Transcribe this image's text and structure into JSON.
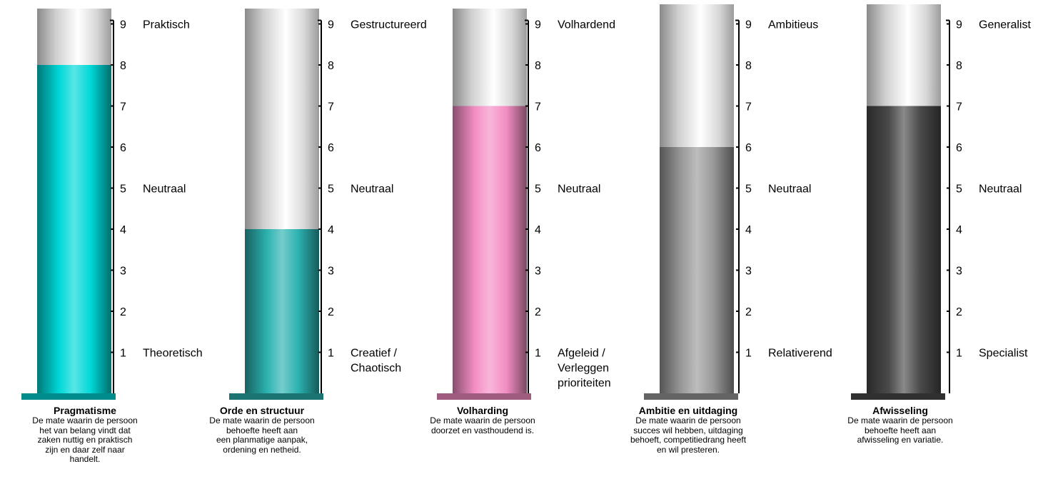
{
  "chart_data": [
    {
      "type": "bar",
      "title": "Pragmatisme",
      "description": "De mate waarin de persoon\nhet van belang vindt dat\nzaken nuttig en praktisch\nzijn en daar zelf naar\nhandelt.",
      "value": 8,
      "ylim": [
        0,
        9.3
      ],
      "yticks": [
        1,
        2,
        3,
        4,
        5,
        6,
        7,
        8,
        9
      ],
      "labels": {
        "high": "Praktisch",
        "mid": "Neutraal",
        "low": [
          "Theoretisch"
        ]
      },
      "color": "#00d8d8"
    },
    {
      "type": "bar",
      "title": "Orde en structuur",
      "description": "De mate waarin de persoon\nbehoefte heeft aan\neen planmatige aanpak,\nordening en netheid.",
      "value": 4,
      "ylim": [
        0,
        9.3
      ],
      "yticks": [
        1,
        2,
        3,
        4,
        5,
        6,
        7,
        8,
        9
      ],
      "labels": {
        "high": "Gestructureerd",
        "mid": "Neutraal",
        "low": [
          "Creatief /",
          "Chaotisch"
        ]
      },
      "color": "#2bb2b0"
    },
    {
      "type": "bar",
      "title": "Volharding",
      "description": "De mate waarin de persoon\ndoorzet en vasthoudend is.",
      "value": 7,
      "ylim": [
        0,
        9.3
      ],
      "yticks": [
        1,
        2,
        3,
        4,
        5,
        6,
        7,
        8,
        9
      ],
      "labels": {
        "high": "Volhardend",
        "mid": "Neutraal",
        "low": [
          "Afgeleid /",
          "Verleggen",
          "prioriteiten"
        ]
      },
      "color": "#f48ec4"
    },
    {
      "type": "bar",
      "title": "Ambitie en uitdaging",
      "description": "De mate waarin de persoon\nsucces wil hebben, uitdaging\nbehoeft, competitiedrang heeft\nen wil presteren.",
      "value": 6,
      "ylim": [
        0,
        9.3
      ],
      "yticks": [
        1,
        2,
        3,
        4,
        5,
        6,
        7,
        8,
        9
      ],
      "labels": {
        "high": "Ambitieus",
        "mid": "Neutraal",
        "low": [
          "Relativerend"
        ]
      },
      "color": "#9a9a9a"
    },
    {
      "type": "bar",
      "title": "Afwisseling",
      "description": "De mate waarin de persoon\nbehoefte heeft aan\nafwisseling en variatie.",
      "value": 7,
      "ylim": [
        0,
        9.3
      ],
      "yticks": [
        1,
        2,
        3,
        4,
        5,
        6,
        7,
        8,
        9
      ],
      "labels": {
        "high": "Generalist",
        "mid": "Neutraal",
        "low": [
          "Specialist"
        ]
      },
      "color": "#4a4a4a"
    }
  ]
}
